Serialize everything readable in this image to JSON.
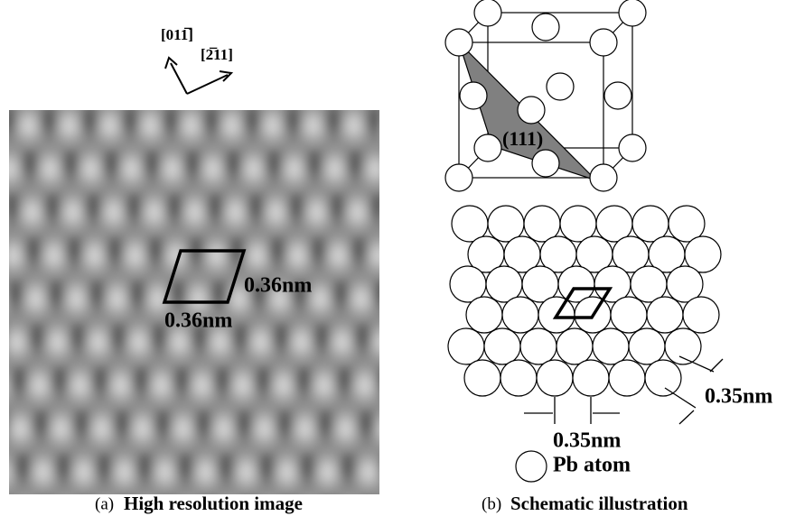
{
  "figure": {
    "panel_a": {
      "direction_1": "[011̅]",
      "direction_2": "[2̅11]",
      "spacing_1": "0.36nm",
      "spacing_2": "0.36nm",
      "caption_letter": "(a)",
      "caption": "High resolution image"
    },
    "panel_b": {
      "plane": "(111)",
      "spacing_1": "0.35nm",
      "spacing_2": "0.35nm",
      "legend": "Pb atom",
      "caption_letter": "(b)",
      "caption": "Schematic illustration"
    }
  }
}
